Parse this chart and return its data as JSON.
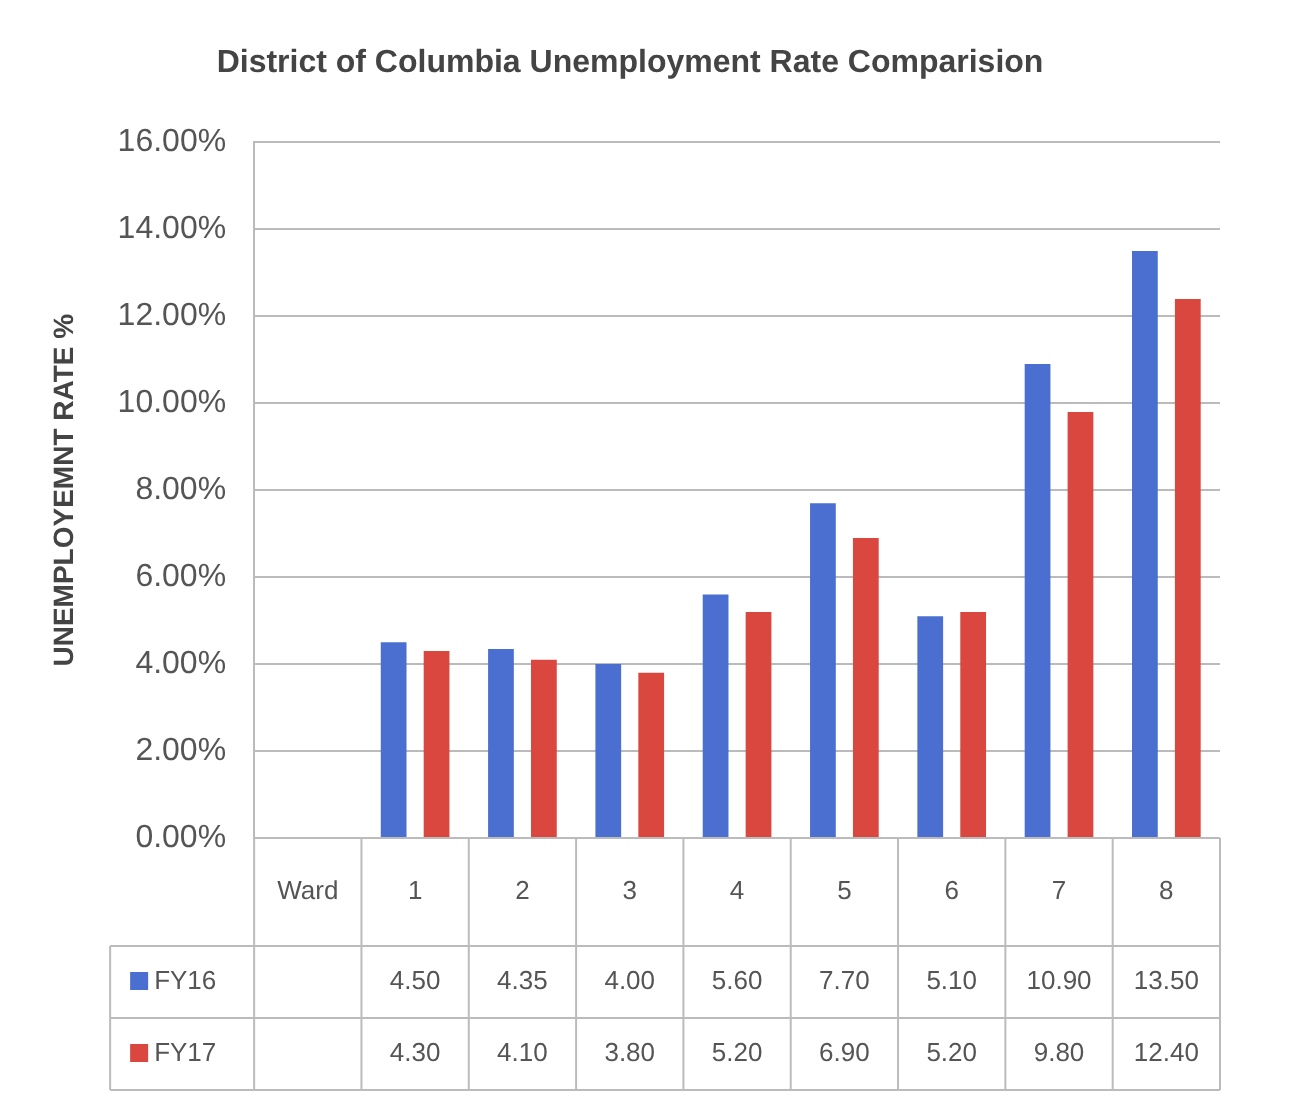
{
  "chart_data": {
    "type": "bar",
    "title": "District of Columbia Unemployment Rate Comparision",
    "ylabel": "UNEMPLOYEMNT RATE %",
    "categories": [
      "Ward",
      "1",
      "2",
      "3",
      "4",
      "5",
      "6",
      "7",
      "8"
    ],
    "series": [
      {
        "name": "FY16",
        "color": "#4a6fd0",
        "values": [
          null,
          4.5,
          4.35,
          4.0,
          5.6,
          7.7,
          5.1,
          10.9,
          13.5
        ],
        "value_labels": [
          null,
          "4.50",
          "4.35",
          "4.00",
          "5.60",
          "7.70",
          "5.10",
          "10.90",
          "13.50"
        ]
      },
      {
        "name": "FY17",
        "color": "#d9473f",
        "values": [
          null,
          4.3,
          4.1,
          3.8,
          5.2,
          6.9,
          5.2,
          9.8,
          12.4
        ],
        "value_labels": [
          null,
          "4.30",
          "4.10",
          "3.80",
          "5.20",
          "6.90",
          "5.20",
          "9.80",
          "12.40"
        ]
      }
    ],
    "ylim": [
      0,
      16
    ],
    "yticks": [
      {
        "value": 0,
        "label": "0.00%"
      },
      {
        "value": 2,
        "label": "2.00%"
      },
      {
        "value": 4,
        "label": "4.00%"
      },
      {
        "value": 6,
        "label": "6.00%"
      },
      {
        "value": 8,
        "label": "8.00%"
      },
      {
        "value": 10,
        "label": "10.00%"
      },
      {
        "value": 12,
        "label": "12.00%"
      },
      {
        "value": 14,
        "label": "14.00%"
      },
      {
        "value": 16,
        "label": "16.00%"
      }
    ],
    "grid": "y",
    "legend": "bottom"
  }
}
